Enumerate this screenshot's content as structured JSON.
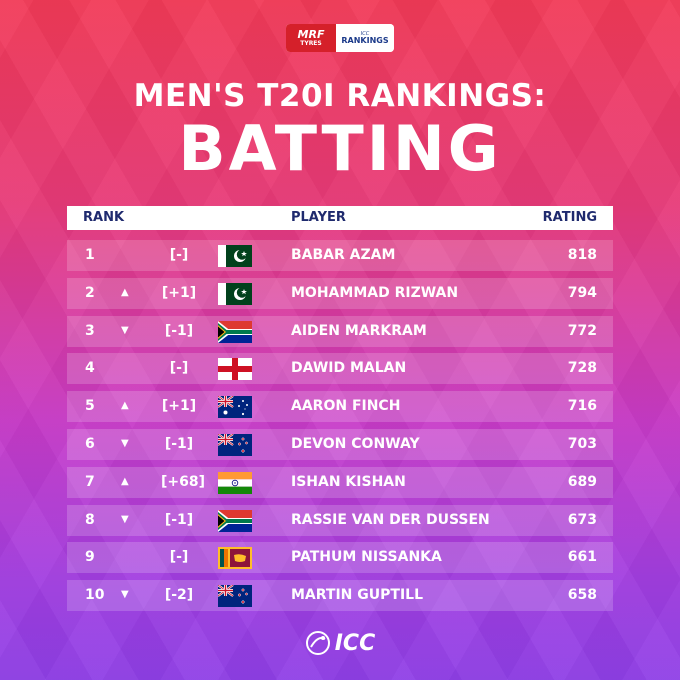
{
  "logo": {
    "mrf": "MRF",
    "tyres": "TYRES",
    "icc_small": "ICC",
    "rankings": "RANKINGS"
  },
  "title_line1": "MEN'S T20I RANKINGS:",
  "title_line2": "BATTING",
  "header": {
    "rank": "RANK",
    "player": "PLAYER",
    "rating": "RATING"
  },
  "rows": [
    {
      "rank": "1",
      "arrow": "",
      "change": "[-]",
      "flag": "pakistan-flag",
      "player": "BABAR AZAM",
      "rating": "818"
    },
    {
      "rank": "2",
      "arrow": "▲",
      "change": "[+1]",
      "flag": "pakistan-flag",
      "player": "MOHAMMAD RIZWAN",
      "rating": "794"
    },
    {
      "rank": "3",
      "arrow": "▼",
      "change": "[-1]",
      "flag": "south-africa-flag",
      "player": "AIDEN MARKRAM",
      "rating": "772"
    },
    {
      "rank": "4",
      "arrow": "",
      "change": "[-]",
      "flag": "england-flag",
      "player": "DAWID MALAN",
      "rating": "728"
    },
    {
      "rank": "5",
      "arrow": "▲",
      "change": "[+1]",
      "flag": "australia-flag",
      "player": "AARON FINCH",
      "rating": "716"
    },
    {
      "rank": "6",
      "arrow": "▼",
      "change": "[-1]",
      "flag": "new-zealand-flag",
      "player": "DEVON CONWAY",
      "rating": "703"
    },
    {
      "rank": "7",
      "arrow": "▲",
      "change": "[+68]",
      "flag": "india-flag",
      "player": "ISHAN KISHAN",
      "rating": "689"
    },
    {
      "rank": "8",
      "arrow": "▼",
      "change": "[-1]",
      "flag": "south-africa-flag",
      "player": "RASSIE VAN DER DUSSEN",
      "rating": "673"
    },
    {
      "rank": "9",
      "arrow": "",
      "change": "[-]",
      "flag": "sri-lanka-flag",
      "player": "PATHUM NISSANKA",
      "rating": "661"
    },
    {
      "rank": "10",
      "arrow": "▼",
      "change": "[-2]",
      "flag": "new-zealand-flag",
      "player": "MARTIN GUPTILL",
      "rating": "658"
    }
  ],
  "footer": {
    "text": "ICC"
  }
}
